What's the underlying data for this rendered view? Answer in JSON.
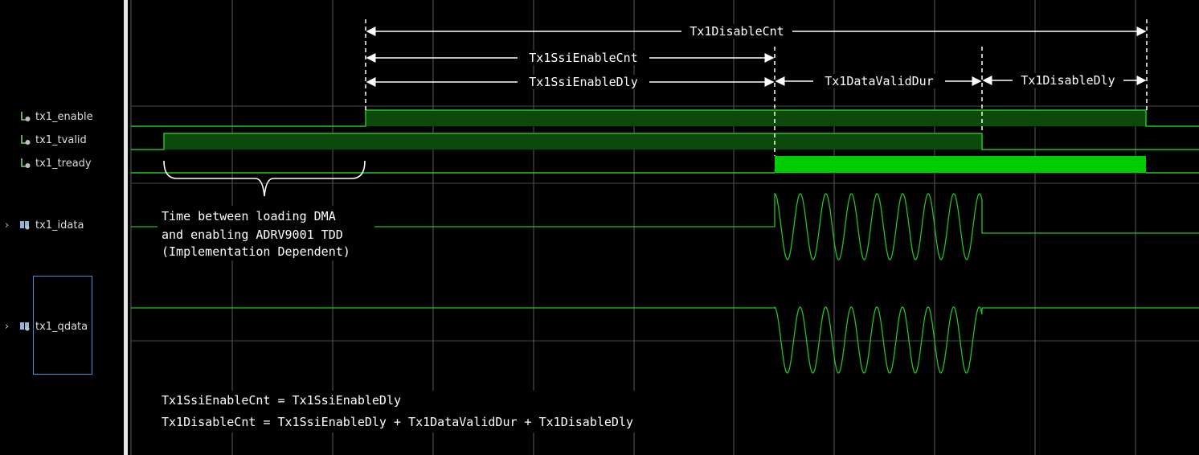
{
  "signals": [
    {
      "name": "tx1_enable",
      "icon": "logic-signal-icon",
      "expandable": false
    },
    {
      "name": "tx1_tvalid",
      "icon": "logic-signal-icon",
      "expandable": false
    },
    {
      "name": "tx1_tready",
      "icon": "logic-signal-icon",
      "expandable": false
    },
    {
      "name": "tx1_idata",
      "icon": "bus-signal-icon",
      "expandable": true
    },
    {
      "name": "tx1_qdata",
      "icon": "bus-signal-icon",
      "expandable": true
    }
  ],
  "spans": {
    "disable_cnt": "Tx1DisableCnt",
    "ssi_enable_cnt": "Tx1SsiEnableCnt",
    "ssi_enable_dly": "Tx1SsiEnableDly",
    "data_valid_dur": "Tx1DataValidDur",
    "disable_dly": "Tx1DisableDly"
  },
  "annotation": {
    "line1": "Time between loading DMA",
    "line2": "and enabling ADRV9001 TDD",
    "line3": "(Implementation Dependent)"
  },
  "equations": {
    "eq1": "Tx1SsiEnableCnt = Tx1SsiEnableDly",
    "eq2": "Tx1DisableCnt = Tx1SsiEnableDly + Tx1DataValidDur + Tx1DisableDly"
  },
  "colors": {
    "background": "#000000",
    "signal_line": "#22c322",
    "signal_fill": "#0b4a0b",
    "tready_fill": "#00cc00",
    "grid": "#5a5a5a",
    "annotation": "#ffffff",
    "selection_box": "#3d8fd4"
  }
}
